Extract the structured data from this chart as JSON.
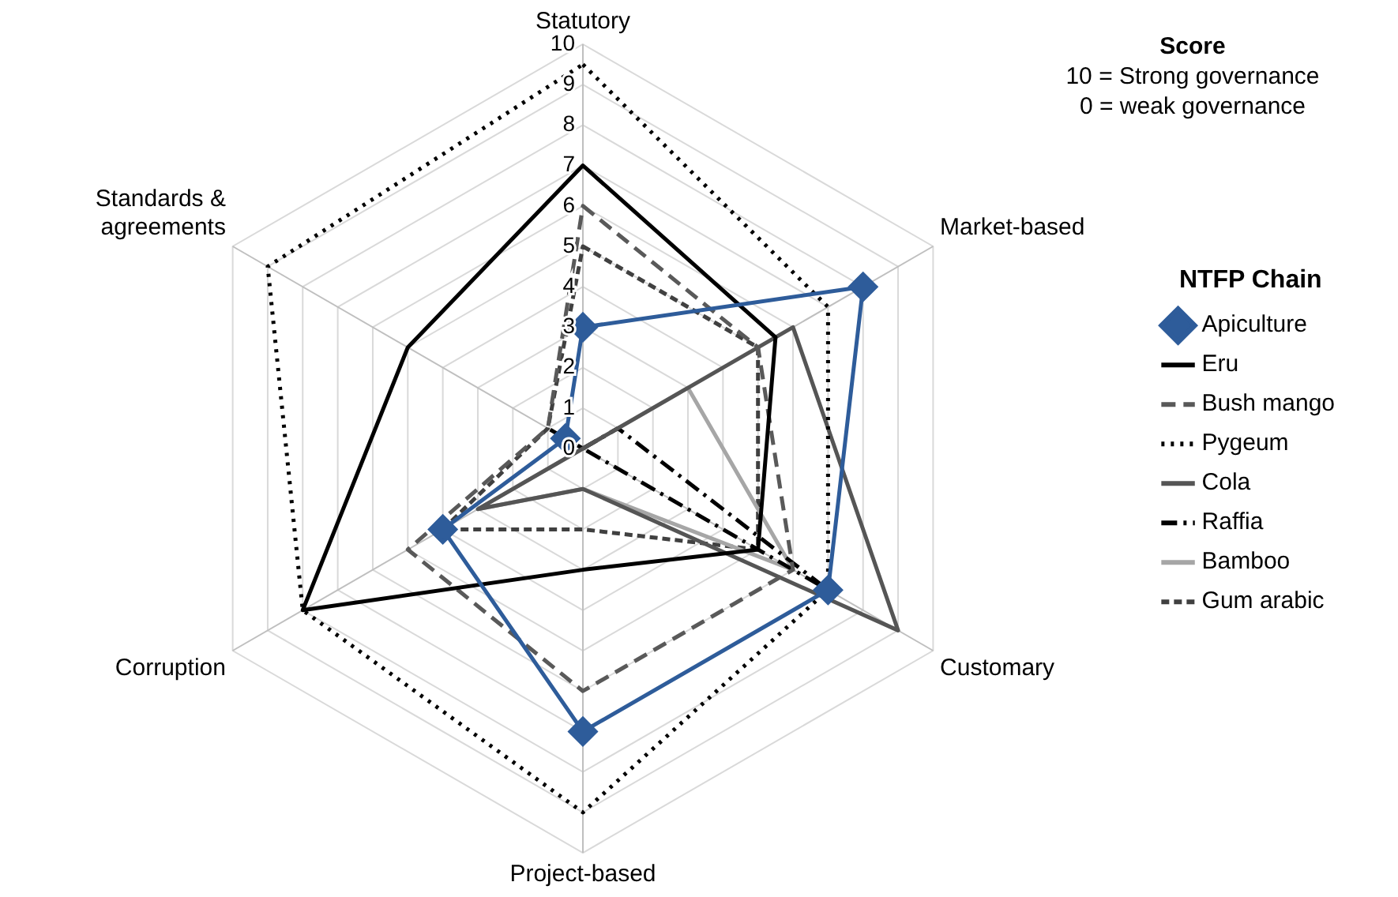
{
  "chart_data": {
    "type": "radar",
    "categories": [
      "Statutory",
      "Market-based",
      "Customary",
      "Project-based",
      "Corruption",
      "Standards & agreements"
    ],
    "ylim": [
      0,
      10
    ],
    "yticks": [
      0,
      1,
      2,
      3,
      4,
      5,
      6,
      7,
      8,
      9,
      10
    ],
    "grid": true,
    "legend": "right",
    "legend_title": "NTFP Chain",
    "annotations": [
      "Score",
      "10 = Strong governance",
      "0 = weak governance"
    ],
    "series": [
      {
        "name": "Apiculture",
        "color": "#2e5c9a",
        "marker": "diamond",
        "line_style": "solid",
        "values": [
          3,
          8,
          7,
          7,
          4,
          0.5
        ]
      },
      {
        "name": "Eru",
        "color": "#000000",
        "marker": "none",
        "line_style": "solid",
        "values": [
          7,
          5.5,
          5,
          3,
          8,
          5
        ]
      },
      {
        "name": "Bush mango",
        "color": "#595959",
        "marker": "none",
        "line_style": "dashed",
        "values": [
          6,
          5,
          6,
          6,
          5,
          1
        ]
      },
      {
        "name": "Pygeum",
        "color": "#000000",
        "marker": "none",
        "line_style": "dotted",
        "values": [
          9.5,
          7,
          7,
          9,
          8,
          9
        ]
      },
      {
        "name": "Cola",
        "color": "#555555",
        "marker": "none",
        "line_style": "solid",
        "values": [
          0,
          6,
          9,
          1,
          3,
          0
        ]
      },
      {
        "name": "Raffia",
        "color": "#000000",
        "marker": "none",
        "line_style": "dashdot",
        "values": [
          0,
          1,
          7,
          0,
          0,
          1
        ]
      },
      {
        "name": "Bamboo",
        "color": "#a6a6a6",
        "marker": "none",
        "line_style": "solid",
        "values": [
          0,
          3,
          6,
          1,
          3,
          0
        ]
      },
      {
        "name": "Gum arabic",
        "color": "#404040",
        "marker": "none",
        "line_style": "shortdash",
        "values": [
          5,
          5,
          5,
          2,
          4,
          1
        ]
      }
    ]
  }
}
